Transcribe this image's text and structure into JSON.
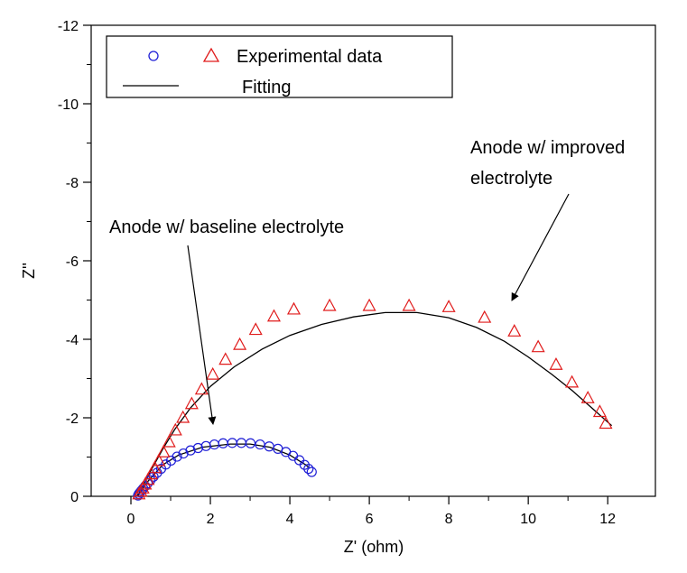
{
  "chart_data": {
    "type": "scatter",
    "title": "",
    "xlabel": "Z' (ohm)",
    "ylabel": "Z''",
    "xlim": [
      -1,
      13.2
    ],
    "ylim": [
      0,
      -12
    ],
    "x_ticks": [
      0,
      2,
      4,
      6,
      8,
      10,
      12
    ],
    "y_ticks": [
      0,
      -2,
      -4,
      -6,
      -8,
      -10,
      -12
    ],
    "y_inverted": true,
    "grid": false,
    "legend": {
      "placement": "top-left",
      "entries": [
        {
          "label": "Experimental data",
          "markers": [
            "circle",
            "triangle"
          ]
        },
        {
          "label": "Fitting",
          "markers": [
            "line"
          ]
        }
      ]
    },
    "annotations": [
      {
        "text": "Anode w/ baseline electrolyte",
        "points_to": [
          1.9,
          -1.75
        ]
      },
      {
        "text_lines": [
          "Anode w/ improved",
          "electrolyte"
        ],
        "points_to": [
          8.8,
          -5.0
        ]
      }
    ],
    "series": [
      {
        "marker": "circle",
        "color": "#1f1fd6",
        "points": [
          [
            0.18,
            -0.02
          ],
          [
            0.2,
            -0.06
          ],
          [
            0.23,
            -0.1
          ],
          [
            0.27,
            -0.15
          ],
          [
            0.31,
            -0.2
          ],
          [
            0.36,
            -0.26
          ],
          [
            0.42,
            -0.33
          ],
          [
            0.49,
            -0.41
          ],
          [
            0.57,
            -0.5
          ],
          [
            0.66,
            -0.6
          ],
          [
            0.76,
            -0.7
          ],
          [
            0.88,
            -0.81
          ],
          [
            1.01,
            -0.91
          ],
          [
            1.16,
            -1.01
          ],
          [
            1.32,
            -1.09
          ],
          [
            1.5,
            -1.17
          ],
          [
            1.69,
            -1.23
          ],
          [
            1.89,
            -1.28
          ],
          [
            2.1,
            -1.32
          ],
          [
            2.32,
            -1.35
          ],
          [
            2.55,
            -1.36
          ],
          [
            2.78,
            -1.36
          ],
          [
            3.01,
            -1.35
          ],
          [
            3.25,
            -1.32
          ],
          [
            3.48,
            -1.27
          ],
          [
            3.7,
            -1.21
          ],
          [
            3.9,
            -1.13
          ],
          [
            4.08,
            -1.03
          ],
          [
            4.24,
            -0.92
          ],
          [
            4.37,
            -0.8
          ],
          [
            4.47,
            -0.7
          ],
          [
            4.55,
            -0.62
          ]
        ]
      },
      {
        "marker": "triangle",
        "color": "#e01b1b",
        "points": [
          [
            0.2,
            -0.05
          ],
          [
            0.25,
            -0.12
          ],
          [
            0.3,
            -0.2
          ],
          [
            0.36,
            -0.3
          ],
          [
            0.43,
            -0.42
          ],
          [
            0.51,
            -0.56
          ],
          [
            0.6,
            -0.72
          ],
          [
            0.7,
            -0.9
          ],
          [
            0.82,
            -1.12
          ],
          [
            0.96,
            -1.38
          ],
          [
            1.12,
            -1.68
          ],
          [
            1.31,
            -2.0
          ],
          [
            1.53,
            -2.35
          ],
          [
            1.78,
            -2.72
          ],
          [
            2.06,
            -3.1
          ],
          [
            2.38,
            -3.48
          ],
          [
            2.74,
            -3.86
          ],
          [
            3.14,
            -4.24
          ],
          [
            3.6,
            -4.58
          ],
          [
            4.1,
            -4.76
          ],
          [
            5.0,
            -4.85
          ],
          [
            6.0,
            -4.85
          ],
          [
            7.0,
            -4.85
          ],
          [
            8.0,
            -4.82
          ],
          [
            8.9,
            -4.55
          ],
          [
            9.65,
            -4.2
          ],
          [
            10.25,
            -3.8
          ],
          [
            10.7,
            -3.35
          ],
          [
            11.1,
            -2.9
          ],
          [
            11.5,
            -2.5
          ],
          [
            11.8,
            -2.15
          ],
          [
            11.95,
            -1.85
          ]
        ]
      },
      {
        "marker": "line",
        "color": "#000000",
        "name": "Fitting",
        "points": [
          [
            0.15,
            0.0
          ],
          [
            0.3,
            -0.25
          ],
          [
            0.5,
            -0.65
          ],
          [
            0.8,
            -1.2
          ],
          [
            1.1,
            -1.7
          ],
          [
            1.5,
            -2.25
          ],
          [
            2.0,
            -2.8
          ],
          [
            2.6,
            -3.3
          ],
          [
            3.3,
            -3.75
          ],
          [
            4.0,
            -4.1
          ],
          [
            4.8,
            -4.38
          ],
          [
            5.6,
            -4.57
          ],
          [
            6.4,
            -4.68
          ],
          [
            7.2,
            -4.68
          ],
          [
            8.0,
            -4.55
          ],
          [
            8.7,
            -4.3
          ],
          [
            9.4,
            -3.95
          ],
          [
            10.0,
            -3.55
          ],
          [
            10.6,
            -3.1
          ],
          [
            11.1,
            -2.7
          ],
          [
            11.6,
            -2.25
          ],
          [
            12.1,
            -1.8
          ]
        ]
      },
      {
        "marker": "line",
        "color": "#000000",
        "name": "Fitting",
        "points": [
          [
            0.17,
            0.0
          ],
          [
            0.4,
            -0.35
          ],
          [
            0.8,
            -0.8
          ],
          [
            1.2,
            -1.05
          ],
          [
            1.8,
            -1.25
          ],
          [
            2.5,
            -1.33
          ],
          [
            3.0,
            -1.33
          ],
          [
            3.5,
            -1.25
          ],
          [
            4.0,
            -1.05
          ],
          [
            4.4,
            -0.8
          ],
          [
            4.5,
            -0.72
          ]
        ]
      }
    ]
  }
}
